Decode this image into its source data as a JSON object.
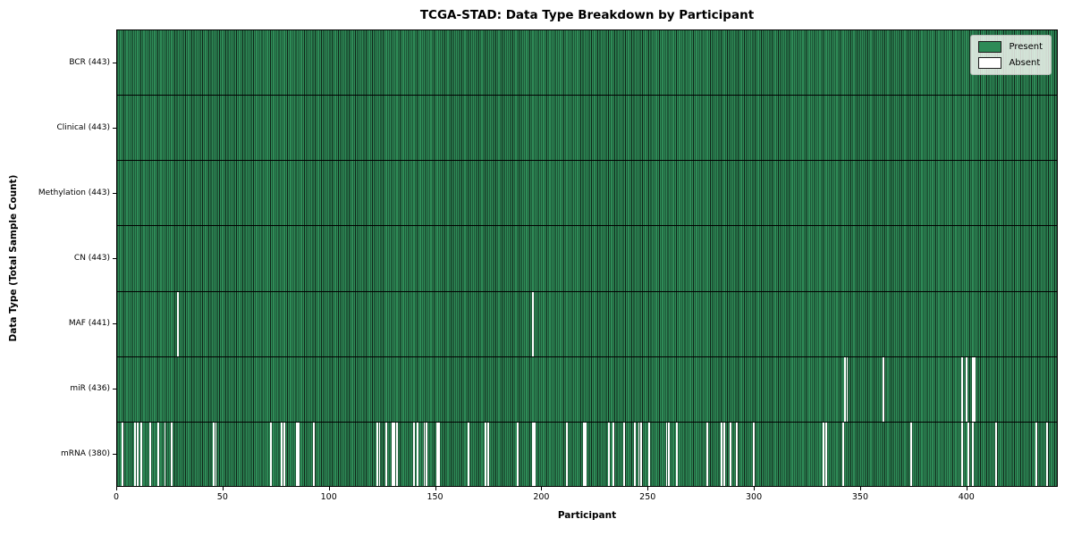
{
  "chart_data": {
    "type": "heatmap",
    "title": "TCGA-STAD: Data Type Breakdown by Participant",
    "xlabel": "Participant",
    "ylabel": "Data Type (Total Sample Count)",
    "xlim": [
      0,
      443
    ],
    "x_ticks": [
      0,
      50,
      100,
      150,
      200,
      250,
      300,
      350,
      400
    ],
    "n_participants": 443,
    "grid": false,
    "legend_position": "upper right",
    "legend": {
      "present_label": "Present",
      "absent_label": "Absent"
    },
    "colors": {
      "present": "#2e8b57",
      "present_edge": "#0f2418",
      "absent": "#ffffff",
      "row_separator": "#000000"
    },
    "rows": [
      {
        "key": "bcr",
        "label": "BCR (443)",
        "data_type": "BCR",
        "present_count": 443,
        "absent_participants": []
      },
      {
        "key": "clinical",
        "label": "Clinical (443)",
        "data_type": "Clinical",
        "present_count": 443,
        "absent_participants": []
      },
      {
        "key": "methylation",
        "label": "Methylation (443)",
        "data_type": "Methylation",
        "present_count": 443,
        "absent_participants": []
      },
      {
        "key": "cn",
        "label": "CN (443)",
        "data_type": "CN",
        "present_count": 443,
        "absent_participants": []
      },
      {
        "key": "maf",
        "label": "MAF (441)",
        "data_type": "MAF",
        "present_count": 441,
        "absent_participants": [
          28,
          195
        ]
      },
      {
        "key": "mir",
        "label": "miR (436)",
        "data_type": "miR",
        "present_count": 436,
        "absent_participants": [
          342,
          343,
          360,
          397,
          399,
          402,
          403
        ]
      },
      {
        "key": "mrna",
        "label": "mRNA (380)",
        "data_type": "mRNA",
        "present_count": 380,
        "absent_participants": [
          2,
          8,
          9,
          11,
          15,
          19,
          22,
          25,
          45,
          46,
          72,
          77,
          78,
          84,
          85,
          92,
          122,
          123,
          126,
          129,
          130,
          131,
          139,
          141,
          144,
          145,
          150,
          151,
          165,
          173,
          174,
          188,
          195,
          196,
          211,
          219,
          220,
          231,
          233,
          238,
          243,
          245,
          246,
          250,
          258,
          259,
          263,
          277,
          284,
          285,
          288,
          291,
          299,
          332,
          333,
          341,
          373,
          397,
          400,
          402,
          413,
          432,
          437
        ]
      }
    ]
  }
}
